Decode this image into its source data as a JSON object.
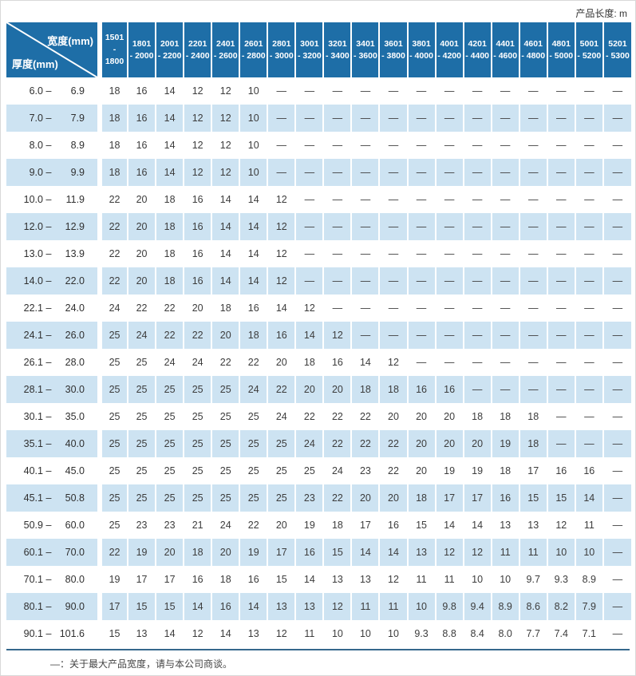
{
  "title_note": "产品长度: m",
  "header": {
    "width_label": "宽度(mm)",
    "thickness_label": "厚度(mm)"
  },
  "label_separator": "–",
  "dash": "—",
  "colors": {
    "header_blue": "#1e6ea7",
    "row_stripe": "#cde3f2",
    "bottom_rule": "#35688c",
    "text": "#3c3c3c"
  },
  "columns": [
    {
      "from": "1501",
      "to": "1800"
    },
    {
      "from": "1801",
      "to": "2000"
    },
    {
      "from": "2001",
      "to": "2200"
    },
    {
      "from": "2201",
      "to": "2400"
    },
    {
      "from": "2401",
      "to": "2600"
    },
    {
      "from": "2601",
      "to": "2800"
    },
    {
      "from": "2801",
      "to": "3000"
    },
    {
      "from": "3001",
      "to": "3200"
    },
    {
      "from": "3201",
      "to": "3400"
    },
    {
      "from": "3401",
      "to": "3600"
    },
    {
      "from": "3601",
      "to": "3800"
    },
    {
      "from": "3801",
      "to": "4000"
    },
    {
      "from": "4001",
      "to": "4200"
    },
    {
      "from": "4201",
      "to": "4400"
    },
    {
      "from": "4401",
      "to": "4600"
    },
    {
      "from": "4601",
      "to": "4800"
    },
    {
      "from": "4801",
      "to": "5000"
    },
    {
      "from": "5001",
      "to": "5200"
    },
    {
      "from": "5201",
      "to": "5300"
    }
  ],
  "rows": [
    {
      "from": "6.0",
      "to": "6.9",
      "values": [
        "18",
        "16",
        "14",
        "12",
        "12",
        "10",
        "—",
        "—",
        "—",
        "—",
        "—",
        "—",
        "—",
        "—",
        "—",
        "—",
        "—",
        "—",
        "—"
      ]
    },
    {
      "from": "7.0",
      "to": "7.9",
      "values": [
        "18",
        "16",
        "14",
        "12",
        "12",
        "10",
        "—",
        "—",
        "—",
        "—",
        "—",
        "—",
        "—",
        "—",
        "—",
        "—",
        "—",
        "—",
        "—"
      ]
    },
    {
      "from": "8.0",
      "to": "8.9",
      "values": [
        "18",
        "16",
        "14",
        "12",
        "12",
        "10",
        "—",
        "—",
        "—",
        "—",
        "—",
        "—",
        "—",
        "—",
        "—",
        "—",
        "—",
        "—",
        "—"
      ]
    },
    {
      "from": "9.0",
      "to": "9.9",
      "values": [
        "18",
        "16",
        "14",
        "12",
        "12",
        "10",
        "—",
        "—",
        "—",
        "—",
        "—",
        "—",
        "—",
        "—",
        "—",
        "—",
        "—",
        "—",
        "—"
      ]
    },
    {
      "from": "10.0",
      "to": "11.9",
      "values": [
        "22",
        "20",
        "18",
        "16",
        "14",
        "14",
        "12",
        "—",
        "—",
        "—",
        "—",
        "—",
        "—",
        "—",
        "—",
        "—",
        "—",
        "—",
        "—"
      ]
    },
    {
      "from": "12.0",
      "to": "12.9",
      "values": [
        "22",
        "20",
        "18",
        "16",
        "14",
        "14",
        "12",
        "—",
        "—",
        "—",
        "—",
        "—",
        "—",
        "—",
        "—",
        "—",
        "—",
        "—",
        "—"
      ]
    },
    {
      "from": "13.0",
      "to": "13.9",
      "values": [
        "22",
        "20",
        "18",
        "16",
        "14",
        "14",
        "12",
        "—",
        "—",
        "—",
        "—",
        "—",
        "—",
        "—",
        "—",
        "—",
        "—",
        "—",
        "—"
      ]
    },
    {
      "from": "14.0",
      "to": "22.0",
      "values": [
        "22",
        "20",
        "18",
        "16",
        "14",
        "14",
        "12",
        "—",
        "—",
        "—",
        "—",
        "—",
        "—",
        "—",
        "—",
        "—",
        "—",
        "—",
        "—"
      ]
    },
    {
      "from": "22.1",
      "to": "24.0",
      "values": [
        "24",
        "22",
        "22",
        "20",
        "18",
        "16",
        "14",
        "12",
        "—",
        "—",
        "—",
        "—",
        "—",
        "—",
        "—",
        "—",
        "—",
        "—",
        "—"
      ]
    },
    {
      "from": "24.1",
      "to": "26.0",
      "values": [
        "25",
        "24",
        "22",
        "22",
        "20",
        "18",
        "16",
        "14",
        "12",
        "—",
        "—",
        "—",
        "—",
        "—",
        "—",
        "—",
        "—",
        "—",
        "—"
      ]
    },
    {
      "from": "26.1",
      "to": "28.0",
      "values": [
        "25",
        "25",
        "24",
        "24",
        "22",
        "22",
        "20",
        "18",
        "16",
        "14",
        "12",
        "—",
        "—",
        "—",
        "—",
        "—",
        "—",
        "—",
        "—"
      ]
    },
    {
      "from": "28.1",
      "to": "30.0",
      "values": [
        "25",
        "25",
        "25",
        "25",
        "25",
        "24",
        "22",
        "20",
        "20",
        "18",
        "18",
        "16",
        "16",
        "—",
        "—",
        "—",
        "—",
        "—",
        "—"
      ]
    },
    {
      "from": "30.1",
      "to": "35.0",
      "values": [
        "25",
        "25",
        "25",
        "25",
        "25",
        "25",
        "24",
        "22",
        "22",
        "22",
        "20",
        "20",
        "20",
        "18",
        "18",
        "18",
        "—",
        "—",
        "—"
      ]
    },
    {
      "from": "35.1",
      "to": "40.0",
      "values": [
        "25",
        "25",
        "25",
        "25",
        "25",
        "25",
        "25",
        "24",
        "22",
        "22",
        "22",
        "20",
        "20",
        "20",
        "19",
        "18",
        "—",
        "—",
        "—"
      ]
    },
    {
      "from": "40.1",
      "to": "45.0",
      "values": [
        "25",
        "25",
        "25",
        "25",
        "25",
        "25",
        "25",
        "25",
        "24",
        "23",
        "22",
        "20",
        "19",
        "19",
        "18",
        "17",
        "16",
        "16",
        "—"
      ]
    },
    {
      "from": "45.1",
      "to": "50.8",
      "values": [
        "25",
        "25",
        "25",
        "25",
        "25",
        "25",
        "25",
        "23",
        "22",
        "20",
        "20",
        "18",
        "17",
        "17",
        "16",
        "15",
        "15",
        "14",
        "—"
      ]
    },
    {
      "from": "50.9",
      "to": "60.0",
      "values": [
        "25",
        "23",
        "23",
        "21",
        "24",
        "22",
        "20",
        "19",
        "18",
        "17",
        "16",
        "15",
        "14",
        "14",
        "13",
        "13",
        "12",
        "11",
        "—"
      ]
    },
    {
      "from": "60.1",
      "to": "70.0",
      "values": [
        "22",
        "19",
        "20",
        "18",
        "20",
        "19",
        "17",
        "16",
        "15",
        "14",
        "14",
        "13",
        "12",
        "12",
        "11",
        "11",
        "10",
        "10",
        "—"
      ]
    },
    {
      "from": "70.1",
      "to": "80.0",
      "values": [
        "19",
        "17",
        "17",
        "16",
        "18",
        "16",
        "15",
        "14",
        "13",
        "13",
        "12",
        "11",
        "11",
        "10",
        "10",
        "9.7",
        "9.3",
        "8.9",
        "—"
      ]
    },
    {
      "from": "80.1",
      "to": "90.0",
      "values": [
        "17",
        "15",
        "15",
        "14",
        "16",
        "14",
        "13",
        "13",
        "12",
        "11",
        "11",
        "10",
        "9.8",
        "9.4",
        "8.9",
        "8.6",
        "8.2",
        "7.9",
        "—"
      ]
    },
    {
      "from": "90.1",
      "to": "101.6",
      "values": [
        "15",
        "13",
        "14",
        "12",
        "14",
        "13",
        "12",
        "11",
        "10",
        "10",
        "10",
        "9.3",
        "8.8",
        "8.4",
        "8.0",
        "7.7",
        "7.4",
        "7.1",
        "—"
      ]
    }
  ],
  "footnote": "—：关于最大产品宽度，请与本公司商谈。"
}
